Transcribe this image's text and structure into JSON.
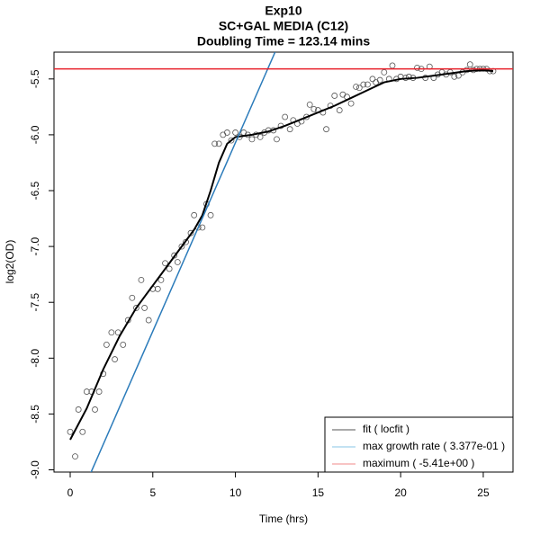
{
  "chart_data": {
    "type": "scatter",
    "title": "Exp10",
    "subtitle": "SC+GAL MEDIA (C12)",
    "annotation": "Doubling Time = 123.14 mins",
    "xlabel": "Time (hrs)",
    "ylabel": "log2(OD)",
    "xlim": [
      -0.98,
      26.8
    ],
    "ylim": [
      -9.02,
      -5.26
    ],
    "xticks": [
      0,
      5,
      10,
      15,
      20,
      25
    ],
    "yticks": [
      {
        "value": -9,
        "label": "-9.0"
      },
      -8.5,
      {
        "value": -8,
        "label": "-8.0"
      },
      -7.5,
      {
        "value": -7,
        "label": "-7.0"
      },
      -6.5,
      {
        "value": -6,
        "label": "-6.0"
      },
      -5.5
    ],
    "legend": "bottomright",
    "series": [
      {
        "style": "points",
        "color": "#555555",
        "x": [
          0,
          0.3,
          0.5,
          0.75,
          1,
          1.3,
          1.5,
          1.75,
          2,
          2.2,
          2.5,
          2.7,
          2.9,
          3.2,
          3.5,
          3.75,
          4,
          4.3,
          4.5,
          4.75,
          5,
          5.3,
          5.5,
          5.75,
          6,
          6.3,
          6.5,
          6.75,
          7,
          7.3,
          7.5,
          7.75,
          8,
          8.25,
          8.5,
          8.75,
          9,
          9.25,
          9.5,
          9.75,
          10,
          10.25,
          10.5,
          10.75,
          11,
          11.25,
          11.5,
          11.75,
          12,
          12.3,
          12.5,
          12.75,
          13,
          13.3,
          13.5,
          13.75,
          14,
          14.3,
          14.5,
          14.75,
          15,
          15.3,
          15.5,
          15.75,
          16,
          16.3,
          16.5,
          16.75,
          17,
          17.3,
          17.5,
          17.75,
          18,
          18.3,
          18.5,
          18.75,
          19,
          19.3,
          19.5,
          19.75,
          20,
          20.3,
          20.5,
          20.75,
          21,
          21.25,
          21.5,
          21.75,
          22,
          22.25,
          22.5,
          22.75,
          23,
          23.25,
          23.5,
          23.75,
          24,
          24.2,
          24.4,
          24.6,
          24.8,
          25,
          25.2,
          25.4,
          25.6
        ],
        "values": [
          -8.66,
          -8.88,
          -8.46,
          -8.66,
          -8.3,
          -8.3,
          -8.46,
          -8.3,
          -8.14,
          -7.88,
          -7.77,
          -8.01,
          -7.77,
          -7.88,
          -7.66,
          -7.46,
          -7.55,
          -7.3,
          -7.55,
          -7.66,
          -7.38,
          -7.38,
          -7.3,
          -7.15,
          -7.2,
          -7.08,
          -7.14,
          -7.0,
          -6.96,
          -6.88,
          -6.72,
          -6.83,
          -6.83,
          -6.62,
          -6.72,
          -6.08,
          -6.08,
          -6.0,
          -5.98,
          -6.05,
          -5.98,
          -6.02,
          -5.98,
          -6.0,
          -6.04,
          -6.0,
          -6.02,
          -5.98,
          -5.96,
          -5.96,
          -6.04,
          -5.92,
          -5.84,
          -5.95,
          -5.87,
          -5.9,
          -5.88,
          -5.84,
          -5.73,
          -5.77,
          -5.78,
          -5.8,
          -5.95,
          -5.74,
          -5.65,
          -5.78,
          -5.64,
          -5.66,
          -5.72,
          -5.57,
          -5.58,
          -5.55,
          -5.55,
          -5.5,
          -5.53,
          -5.51,
          -5.44,
          -5.5,
          -5.38,
          -5.5,
          -5.48,
          -5.49,
          -5.48,
          -5.49,
          -5.4,
          -5.41,
          -5.49,
          -5.39,
          -5.49,
          -5.46,
          -5.44,
          -5.46,
          -5.44,
          -5.48,
          -5.47,
          -5.44,
          -5.42,
          -5.37,
          -5.42,
          -5.41,
          -5.41,
          -5.41,
          -5.41,
          -5.43,
          -5.43
        ]
      },
      {
        "name": "fit ( locfit )",
        "style": "line",
        "color": "#000000",
        "legend_color": "#555555",
        "x": [
          0,
          1,
          2,
          3,
          4,
          5,
          6,
          7,
          7.5,
          8,
          8.5,
          9,
          9.5,
          10,
          11,
          12,
          13,
          14,
          15,
          16,
          17,
          18,
          19,
          20,
          21,
          22,
          23,
          24,
          25,
          25.6
        ],
        "values": [
          -8.73,
          -8.45,
          -8.1,
          -7.8,
          -7.55,
          -7.35,
          -7.15,
          -6.95,
          -6.85,
          -6.72,
          -6.5,
          -6.25,
          -6.08,
          -6.02,
          -6.0,
          -5.97,
          -5.92,
          -5.86,
          -5.8,
          -5.74,
          -5.67,
          -5.6,
          -5.53,
          -5.5,
          -5.49,
          -5.47,
          -5.45,
          -5.43,
          -5.42,
          -5.43
        ]
      },
      {
        "name": "max growth rate ( 3.377e-01 )",
        "style": "line",
        "color": "#2b7bba",
        "legend_color": "#87c4e6",
        "x": [
          1,
          12.4
        ],
        "values": [
          -9.11,
          -5.26
        ]
      },
      {
        "name": "maximum ( -5.41e+00 )",
        "style": "hline",
        "color": "#e8202a",
        "legend_color": "#f08a8a",
        "values": [
          -5.41
        ]
      }
    ]
  }
}
